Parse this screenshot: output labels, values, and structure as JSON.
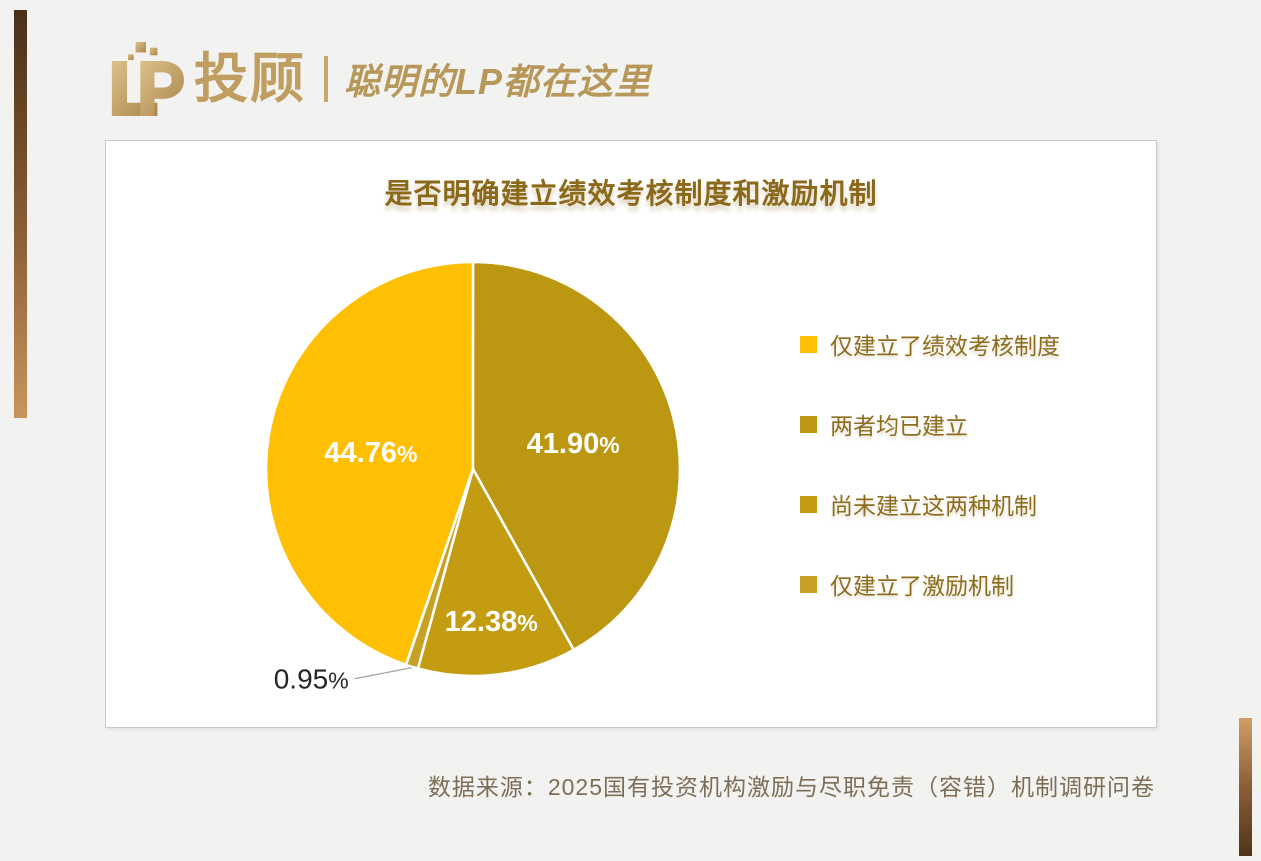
{
  "brand": {
    "name": "投顾",
    "slogan": "聪明的LP都在这里",
    "gold_light": "#dcc18b",
    "gold_dark": "#aa844a"
  },
  "chart_panel": {
    "title": "是否明确建立绩效考核制度和激励机制"
  },
  "chart_data": {
    "type": "pie",
    "title": "是否明确建立绩效考核制度和激励机制",
    "rotation_deg": 198.9,
    "legend_position": "right",
    "grid": false,
    "slices": [
      {
        "label": "仅建立了绩效考核制度",
        "value": 44.76,
        "display": "44.76%",
        "color": "#FFC003",
        "label_color": "#ffffff",
        "label_placement": "inside"
      },
      {
        "label": "两者均已建立",
        "value": 41.9,
        "display": "41.90%",
        "color": "#BC9712",
        "label_color": "#ffffff",
        "label_placement": "inside"
      },
      {
        "label": "尚未建立这两种机制",
        "value": 12.38,
        "display": "12.38%",
        "color": "#C39C11",
        "label_color": "#ffffff",
        "label_placement": "inside"
      },
      {
        "label": "仅建立了激励机制",
        "value": 0.95,
        "display": "0.95%",
        "color": "#C7A125",
        "label_color": "#262626",
        "label_placement": "outside-leader"
      }
    ]
  },
  "source_note": "数据来源：2025国有投资机构激励与尽职免责（容错）机制调研问卷"
}
